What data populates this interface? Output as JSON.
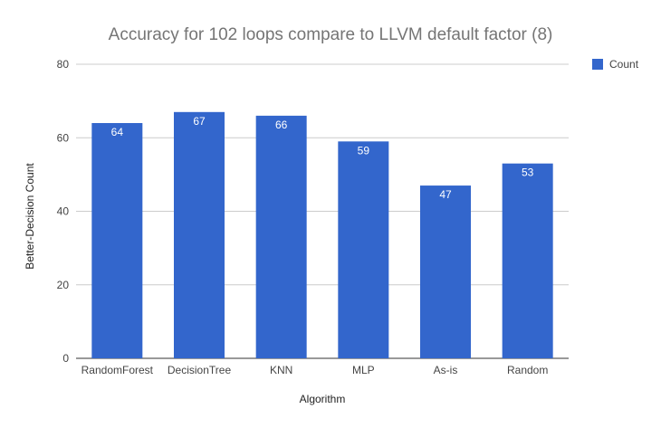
{
  "chart_data": {
    "type": "bar",
    "title": "Accuracy for 102 loops compare to LLVM default factor (8)",
    "xlabel": "Algorithm",
    "ylabel": "Better-Decision Count",
    "categories": [
      "RandomForest",
      "DecisionTree",
      "KNN",
      "MLP",
      "As-is",
      "Random"
    ],
    "series": [
      {
        "name": "Count",
        "values": [
          64,
          67,
          66,
          59,
          47,
          53
        ],
        "color": "#3366cc"
      }
    ],
    "ylim": [
      0,
      80
    ],
    "yticks": [
      0,
      20,
      40,
      60,
      80
    ],
    "grid": true,
    "legend_position": "right",
    "data_labels": true
  }
}
